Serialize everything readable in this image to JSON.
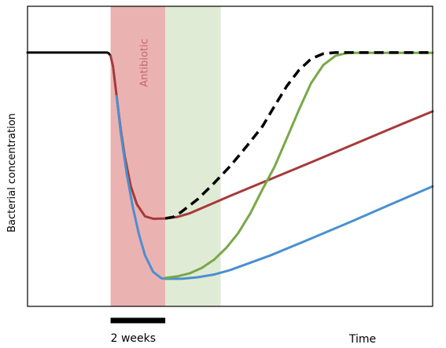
{
  "chart_data": {
    "type": "line",
    "title": "",
    "xlabel": "Time",
    "ylabel": "Bacterial concentration",
    "xlim": [
      0,
      100
    ],
    "ylim": [
      0,
      100
    ],
    "grid": false,
    "legend": "none",
    "scale_bar": {
      "label": "2 weeks",
      "x_start": 20.5,
      "x_end": 34.0
    },
    "shaded_regions": [
      {
        "label": "Antibiotic",
        "x_start": 20.5,
        "x_end": 34.0,
        "color": "#e8a4a4",
        "label_color": "#c06a72"
      },
      {
        "label": "",
        "x_start": 34.0,
        "x_end": 47.7,
        "color": "#dce9d0",
        "label_color": ""
      }
    ],
    "series": [
      {
        "color": "#000000",
        "style": "solid",
        "points": [
          [
            0,
            84.6
          ],
          [
            19.6,
            84.6
          ],
          [
            20.0,
            84.4
          ],
          [
            20.5,
            83.5
          ]
        ]
      },
      {
        "color": "#a63a3a",
        "style": "solid",
        "points": [
          [
            20.5,
            83.5
          ],
          [
            21.1,
            80.0
          ],
          [
            22.0,
            70.0
          ],
          [
            23.0,
            59.0
          ],
          [
            24.0,
            50.0
          ],
          [
            25.5,
            40.0
          ],
          [
            27.0,
            34.0
          ],
          [
            29.0,
            30.0
          ],
          [
            31.0,
            29.2
          ],
          [
            34.0,
            29.3
          ],
          [
            37.0,
            29.8
          ],
          [
            40.0,
            31.0
          ],
          [
            50.0,
            36.8
          ],
          [
            60.0,
            42.4
          ],
          [
            70.0,
            48.0
          ],
          [
            80.0,
            53.7
          ],
          [
            90.0,
            59.4
          ],
          [
            100.0,
            65.0
          ]
        ]
      },
      {
        "color": "#4a90cf",
        "style": "solid",
        "points": [
          [
            22.0,
            70.0
          ],
          [
            23.0,
            58.0
          ],
          [
            24.5,
            44.0
          ],
          [
            26.0,
            33.0
          ],
          [
            27.5,
            24.0
          ],
          [
            29.0,
            17.0
          ],
          [
            31.0,
            11.5
          ],
          [
            33.0,
            9.4
          ],
          [
            34.0,
            9.2
          ],
          [
            38.0,
            9.2
          ],
          [
            42.0,
            9.7
          ],
          [
            46.0,
            10.6
          ],
          [
            50.0,
            12.1
          ],
          [
            60.0,
            17.0
          ],
          [
            70.0,
            22.6
          ],
          [
            80.0,
            28.3
          ],
          [
            90.0,
            34.2
          ],
          [
            100.0,
            40.0
          ]
        ]
      },
      {
        "color": "#78a848",
        "style": "solid",
        "points": [
          [
            34.0,
            9.5
          ],
          [
            37.0,
            10.0
          ],
          [
            40.0,
            11.0
          ],
          [
            43.0,
            12.8
          ],
          [
            46.0,
            15.5
          ],
          [
            49.0,
            19.4
          ],
          [
            52.0,
            24.4
          ],
          [
            55.0,
            31.0
          ],
          [
            58.0,
            39.0
          ],
          [
            61.0,
            46.6
          ],
          [
            64.0,
            56.0
          ],
          [
            67.0,
            65.5
          ],
          [
            70.0,
            74.4
          ],
          [
            73.0,
            80.4
          ],
          [
            76.0,
            83.5
          ],
          [
            79.0,
            84.5
          ],
          [
            100.0,
            84.5
          ]
        ]
      },
      {
        "color": "#000000",
        "style": "dashed",
        "points": [
          [
            34.0,
            29.3
          ],
          [
            36.0,
            29.8
          ],
          [
            38.0,
            31.5
          ],
          [
            42.0,
            35.7
          ],
          [
            46.0,
            41.0
          ],
          [
            50.0,
            46.7
          ],
          [
            54.0,
            53.2
          ],
          [
            58.0,
            60.0
          ],
          [
            61.0,
            66.8
          ],
          [
            64.0,
            73.4
          ],
          [
            67.0,
            78.7
          ],
          [
            70.0,
            82.5
          ],
          [
            73.0,
            84.2
          ],
          [
            76.0,
            84.6
          ],
          [
            100.0,
            84.6
          ]
        ]
      }
    ]
  }
}
